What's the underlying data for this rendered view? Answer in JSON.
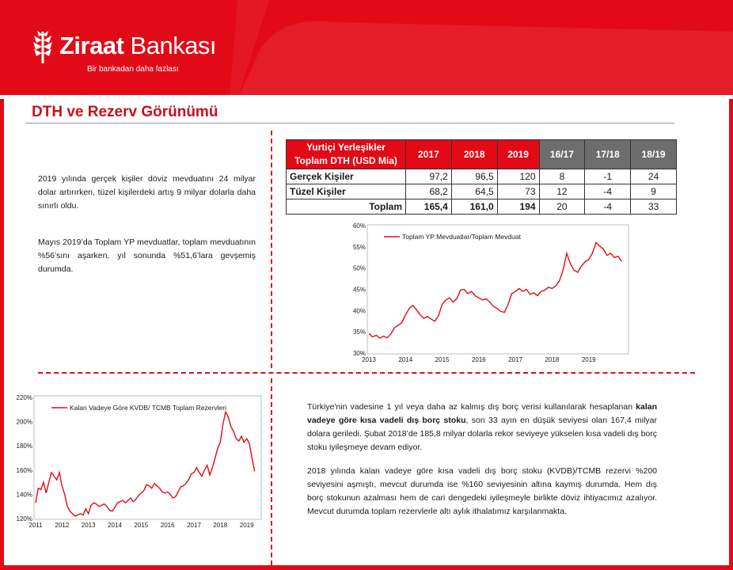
{
  "header": {
    "brand_bold": "Ziraat",
    "brand_light": " Bankası",
    "slogan": "Bir bankadan daha fazlası",
    "brand_color": "#e30a17"
  },
  "page_title": "DTH ve Rezerv Görünümü",
  "left_text": {
    "para1": "2019 yılında gerçek kişiler döviz mevduatını 24 milyar dolar artırırken, tüzel kişilerdeki artış 9 milyar dolarla daha sınırlı oldu.",
    "para2": "Mayıs 2019’da Toplam YP mevduatlar, toplam mevduatının %56’sını aşarken, yıl sonunda %51,6’lara gevşemiş durumda."
  },
  "table": {
    "header_label_line1": "Yurtiçi Yerleşikler",
    "header_label_line2": "Toplam DTH (USD Mia)",
    "columns": [
      "2017",
      "2018",
      "2019",
      "16/17",
      "17/18",
      "18/19"
    ],
    "rows": [
      {
        "label": "Gerçek Kişiler",
        "values": [
          "97,2",
          "96,5",
          "120",
          "8",
          "-1",
          "24"
        ]
      },
      {
        "label": "Tüzel Kişiler",
        "values": [
          "68,2",
          "64,5",
          "73",
          "12",
          "-4",
          "9"
        ]
      },
      {
        "label": "Toplam",
        "values": [
          "165,4",
          "161,0",
          "194",
          "20",
          "-4",
          "33"
        ]
      }
    ]
  },
  "right_text": {
    "p1_before": "Türkiye'nin vadesine 1 yıl veya daha az kalmış dış borç verisi kullanılarak hesaplanan ",
    "p1_bold": "kalan vadeye göre kısa vadeli dış borç stoku",
    "p1_after": ", son 33 ayın en düşük seviyesi olan 167,4 milyar dolara geriledi. Şubat 2018’de 185,8 milyar dolarla rekor seviyeye yükselen kısa vadeli dış borç stoku iyileşmeye devam ediyor.",
    "p2": "2018 yılında kalan vadeye göre kısa vadeli dış borç stoku (KVDB)/TCMB rezervi %200 seviyesini aşmıştı, mevcut durumda ise %160 seviyesinin altına kaymış durumda. Hem dış borç stokunun azalması hem de cari dengedeki iyileşmeyle birlikte döviz ihtiyacımız azalıyor. Mevcut durumda toplam rezervlerle altı aylık ithalatımız karşılanmakta."
  },
  "chart_data": [
    {
      "type": "line",
      "legend": "Toplam YP Mevduatlar/Toplam Mevduat",
      "color": "#e30a17",
      "x_ticks": [
        "2013",
        "2014",
        "2015",
        "2016",
        "2017",
        "2018",
        "2019"
      ],
      "y_ticks": [
        "30%",
        "35%",
        "40%",
        "45%",
        "50%",
        "55%",
        "60%"
      ],
      "ylim": [
        30,
        60
      ],
      "xlim": [
        2013.0,
        2020.0
      ],
      "x": [
        2013.0,
        2013.1,
        2013.2,
        2013.3,
        2013.4,
        2013.5,
        2013.6,
        2013.7,
        2013.8,
        2013.9,
        2014.0,
        2014.1,
        2014.2,
        2014.3,
        2014.4,
        2014.5,
        2014.6,
        2014.7,
        2014.8,
        2014.9,
        2015.0,
        2015.1,
        2015.2,
        2015.3,
        2015.4,
        2015.5,
        2015.6,
        2015.7,
        2015.8,
        2015.9,
        2016.0,
        2016.1,
        2016.2,
        2016.3,
        2016.4,
        2016.5,
        2016.6,
        2016.7,
        2016.8,
        2016.9,
        2017.0,
        2017.1,
        2017.2,
        2017.3,
        2017.4,
        2017.5,
        2017.6,
        2017.7,
        2017.8,
        2017.9,
        2018.0,
        2018.1,
        2018.2,
        2018.3,
        2018.4,
        2018.5,
        2018.6,
        2018.7,
        2018.8,
        2018.9,
        2019.0,
        2019.1,
        2019.2,
        2019.3,
        2019.4,
        2019.5,
        2019.6,
        2019.7,
        2019.8,
        2019.9
      ],
      "y": [
        34.6,
        33.8,
        34.2,
        33.5,
        34.0,
        33.6,
        34.5,
        36.0,
        36.5,
        37.2,
        39.0,
        40.5,
        41.2,
        40.2,
        39.0,
        38.2,
        38.6,
        38.0,
        37.5,
        38.8,
        41.5,
        42.5,
        43.0,
        42.0,
        42.8,
        44.8,
        45.0,
        44.0,
        44.5,
        43.5,
        43.0,
        42.5,
        42.8,
        42.0,
        41.0,
        40.5,
        39.8,
        39.6,
        41.5,
        44.0,
        44.5,
        45.2,
        44.5,
        45.0,
        43.8,
        44.2,
        43.5,
        44.5,
        44.8,
        45.5,
        45.2,
        45.8,
        47.0,
        49.5,
        53.5,
        51.0,
        49.5,
        49.0,
        50.5,
        51.5,
        52.0,
        53.5,
        56.0,
        55.2,
        54.5,
        53.0,
        53.5,
        52.5,
        52.8,
        51.6
      ]
    },
    {
      "type": "line",
      "legend": "Kalan Vadeye Göre KVDB/ TCMB Toplam Rezervleri",
      "color": "#e30a17",
      "x_ticks": [
        "2011",
        "2012",
        "2013",
        "2014",
        "2015",
        "2016",
        "2017",
        "2018",
        "2019"
      ],
      "y_ticks": [
        "120%",
        "140%",
        "160%",
        "180%",
        "200%",
        "220%"
      ],
      "ylim": [
        120,
        220
      ],
      "xlim": [
        2011.0,
        2019.4
      ],
      "x": [
        2011.0,
        2011.1,
        2011.2,
        2011.3,
        2011.4,
        2011.5,
        2011.6,
        2011.7,
        2011.8,
        2011.9,
        2012.0,
        2012.1,
        2012.2,
        2012.3,
        2012.4,
        2012.5,
        2012.6,
        2012.7,
        2012.8,
        2012.9,
        2013.0,
        2013.1,
        2013.2,
        2013.3,
        2013.4,
        2013.5,
        2013.6,
        2013.7,
        2013.8,
        2013.9,
        2014.0,
        2014.1,
        2014.2,
        2014.3,
        2014.4,
        2014.5,
        2014.6,
        2014.7,
        2014.8,
        2014.9,
        2015.0,
        2015.1,
        2015.2,
        2015.3,
        2015.4,
        2015.5,
        2015.6,
        2015.7,
        2015.8,
        2015.9,
        2016.0,
        2016.1,
        2016.2,
        2016.3,
        2016.4,
        2016.5,
        2016.6,
        2016.7,
        2016.8,
        2016.9,
        2017.0,
        2017.1,
        2017.2,
        2017.3,
        2017.4,
        2017.5,
        2017.6,
        2017.7,
        2017.8,
        2017.9,
        2018.0,
        2018.1,
        2018.2,
        2018.3,
        2018.4,
        2018.5,
        2018.6,
        2018.7,
        2018.8,
        2018.9,
        2019.0,
        2019.1,
        2019.2,
        2019.3
      ],
      "y": [
        133,
        145,
        144,
        150,
        141,
        150,
        158,
        155,
        152,
        158,
        147,
        140,
        130,
        126,
        124,
        122,
        123,
        124,
        123,
        128,
        124,
        131,
        133,
        132,
        130,
        131,
        132,
        130,
        127,
        126,
        129,
        133,
        134,
        135,
        133,
        135,
        137,
        134,
        136,
        139,
        141,
        143,
        148,
        147,
        145,
        149,
        147,
        145,
        142,
        141,
        142,
        140,
        137,
        138,
        142,
        146,
        147,
        149,
        152,
        157,
        158,
        162,
        158,
        155,
        160,
        164,
        156,
        162,
        170,
        178,
        183,
        198,
        208,
        204,
        196,
        192,
        186,
        184,
        188,
        183,
        186,
        182,
        170,
        159
      ]
    }
  ]
}
